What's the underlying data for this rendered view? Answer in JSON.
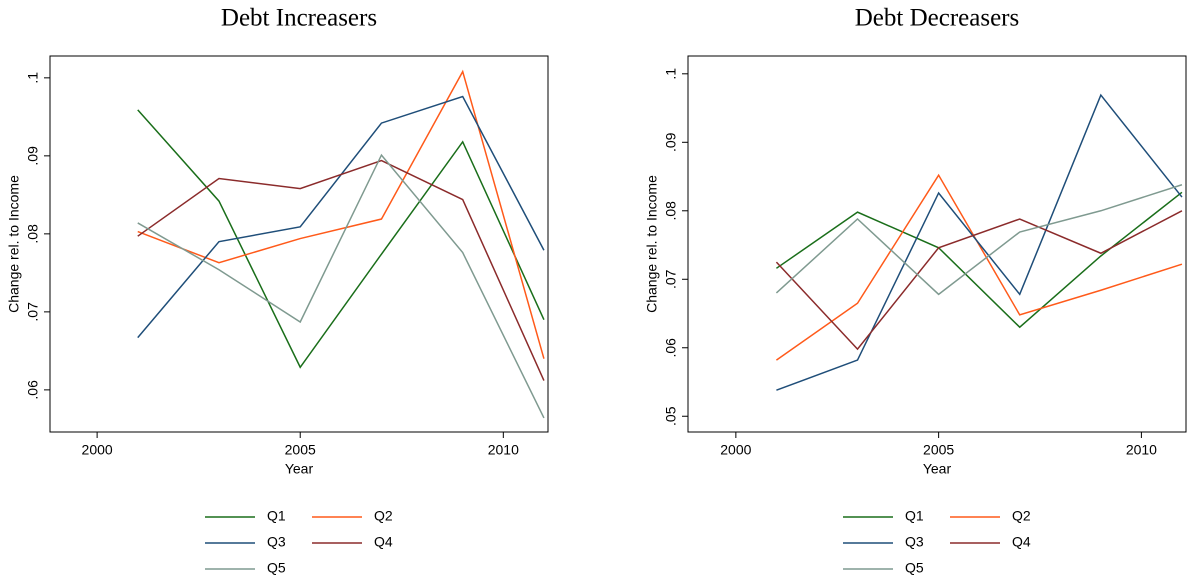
{
  "chart_data": [
    {
      "type": "line",
      "title": "Debt Increasers",
      "x_label": "Year",
      "y_label": "Change rel. to Income",
      "x": [
        2001,
        2003,
        2005,
        2007,
        2009,
        2011
      ],
      "xlim": [
        1998.84,
        2011.1
      ],
      "xticks": [
        2000,
        2005,
        2010
      ],
      "ylim": [
        0.0546,
        0.1028
      ],
      "yticks": [
        {
          "value": 0.06,
          "label": ".06"
        },
        {
          "value": 0.07,
          "label": ".07"
        },
        {
          "value": 0.08,
          "label": ".08"
        },
        {
          "value": 0.09,
          "label": ".09"
        },
        {
          "value": 0.1,
          "label": ".1"
        }
      ],
      "series": [
        {
          "name": "Q1",
          "color": "#1a6e1a",
          "values": [
            0.0959,
            0.0842,
            0.0629,
            0.0774,
            0.0918,
            0.069
          ]
        },
        {
          "name": "Q2",
          "color": "#ff5a1a",
          "values": [
            0.0803,
            0.0763,
            0.0794,
            0.0819,
            0.1008,
            0.064
          ]
        },
        {
          "name": "Q3",
          "color": "#1f4e79",
          "values": [
            0.0667,
            0.079,
            0.0809,
            0.0942,
            0.0976,
            0.0779
          ]
        },
        {
          "name": "Q4",
          "color": "#8b2b2b",
          "values": [
            0.0797,
            0.0871,
            0.0858,
            0.0894,
            0.0844,
            0.0612
          ]
        },
        {
          "name": "Q5",
          "color": "#7f9a90",
          "values": [
            0.0814,
            0.0754,
            0.0687,
            0.0901,
            0.0776,
            0.0564
          ]
        }
      ]
    },
    {
      "type": "line",
      "title": "Debt Decreasers",
      "x_label": "Year",
      "y_label": "Change rel. to Income",
      "x": [
        2001,
        2003,
        2005,
        2007,
        2009,
        2011
      ],
      "xlim": [
        1998.82,
        2011.1
      ],
      "xticks": [
        2000,
        2005,
        2010
      ],
      "ylim": [
        0.0477,
        0.1026
      ],
      "yticks": [
        {
          "value": 0.05,
          "label": ".05"
        },
        {
          "value": 0.06,
          "label": ".06"
        },
        {
          "value": 0.07,
          "label": ".07"
        },
        {
          "value": 0.08,
          "label": ".08"
        },
        {
          "value": 0.09,
          "label": ".09"
        },
        {
          "value": 0.1,
          "label": ".1"
        }
      ],
      "series": [
        {
          "name": "Q1",
          "color": "#1a6e1a",
          "values": [
            0.0716,
            0.0798,
            0.0746,
            0.063,
            0.0734,
            0.0827
          ]
        },
        {
          "name": "Q2",
          "color": "#ff5a1a",
          "values": [
            0.0582,
            0.0665,
            0.0852,
            0.0648,
            0.0684,
            0.0722
          ]
        },
        {
          "name": "Q3",
          "color": "#1f4e79",
          "values": [
            0.0538,
            0.0582,
            0.0826,
            0.0678,
            0.0969,
            0.082
          ]
        },
        {
          "name": "Q4",
          "color": "#8b2b2b",
          "values": [
            0.0725,
            0.0598,
            0.0746,
            0.0788,
            0.0738,
            0.08
          ]
        },
        {
          "name": "Q5",
          "color": "#7f9a90",
          "values": [
            0.068,
            0.0788,
            0.0678,
            0.0769,
            0.08,
            0.0838
          ]
        }
      ]
    }
  ]
}
